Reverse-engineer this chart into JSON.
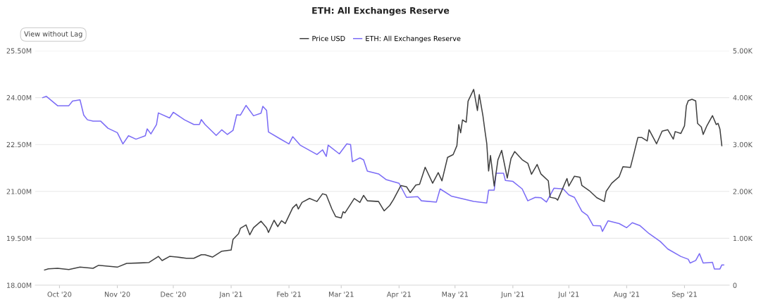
{
  "chart_data": {
    "type": "line",
    "title": "ETH: All Exchanges Reserve",
    "annotations": [
      "View without Lag"
    ],
    "legend": "top",
    "grid": "y",
    "xlim": [
      "2020-09-18",
      "2021-09-25"
    ],
    "xticks": [
      {
        "value": "2020-10-01",
        "label": "Oct '20"
      },
      {
        "value": "2020-11-01",
        "label": "Nov '20"
      },
      {
        "value": "2020-12-01",
        "label": "Dec '20"
      },
      {
        "value": "2021-01-01",
        "label": "Jan '21"
      },
      {
        "value": "2021-02-01",
        "label": "Feb '21"
      },
      {
        "value": "2021-03-01",
        "label": "Mar '21"
      },
      {
        "value": "2021-04-01",
        "label": "Apr '21"
      },
      {
        "value": "2021-05-01",
        "label": "May '21"
      },
      {
        "value": "2021-06-01",
        "label": "Jun '21"
      },
      {
        "value": "2021-07-01",
        "label": "Jul '21"
      },
      {
        "value": "2021-08-01",
        "label": "Aug '21"
      },
      {
        "value": "2021-09-01",
        "label": "Sep '21"
      }
    ],
    "ylim": [
      18,
      25.5
    ],
    "yticks": [
      {
        "value": 18,
        "label": "18.00M"
      },
      {
        "value": 19.5,
        "label": "19.50M"
      },
      {
        "value": 21,
        "label": "21.00M"
      },
      {
        "value": 22.5,
        "label": "22.50M"
      },
      {
        "value": 24,
        "label": "24.00M"
      },
      {
        "value": 25.5,
        "label": "25.50M"
      }
    ],
    "y2lim": [
      0,
      5000
    ],
    "y2ticks": [
      0,
      {
        "value": 1000,
        "label": "1.00K"
      },
      {
        "value": 2000,
        "label": "2.00K"
      },
      {
        "value": 3000,
        "label": "3.00K"
      },
      {
        "value": 4000,
        "label": "4.00K"
      },
      {
        "value": 5000,
        "label": "5.00K"
      }
    ],
    "series": [
      {
        "name": "Price USD",
        "color": "#404040",
        "axis": "y2",
        "x": [
          "2020-09-23",
          "2020-09-25",
          "2020-09-30",
          "2020-10-06",
          "2020-10-12",
          "2020-10-19",
          "2020-10-22",
          "2020-11-01",
          "2020-11-06",
          "2020-11-13",
          "2020-11-18",
          "2020-11-23",
          "2020-11-25",
          "2020-11-29",
          "2020-12-03",
          "2020-12-08",
          "2020-12-12",
          "2020-12-16",
          "2020-12-18",
          "2020-12-22",
          "2020-12-27",
          "2021-01-01",
          "2021-01-02",
          "2021-01-05",
          "2021-01-06",
          "2021-01-09",
          "2021-01-11",
          "2021-01-13",
          "2021-01-17",
          "2021-01-20",
          "2021-01-21",
          "2021-01-24",
          "2021-01-26",
          "2021-01-28",
          "2021-01-30",
          "2021-02-03",
          "2021-02-05",
          "2021-02-06",
          "2021-02-08",
          "2021-02-12",
          "2021-02-16",
          "2021-02-19",
          "2021-02-21",
          "2021-02-24",
          "2021-02-26",
          "2021-03-01",
          "2021-03-02",
          "2021-03-03",
          "2021-03-08",
          "2021-03-11",
          "2021-03-13",
          "2021-03-15",
          "2021-03-21",
          "2021-03-24",
          "2021-03-27",
          "2021-03-29",
          "2021-04-02",
          "2021-04-05",
          "2021-04-07",
          "2021-04-10",
          "2021-04-12",
          "2021-04-15",
          "2021-04-19",
          "2021-04-22",
          "2021-04-24",
          "2021-04-27",
          "2021-04-30",
          "2021-05-02",
          "2021-05-03",
          "2021-05-04",
          "2021-05-05",
          "2021-05-07",
          "2021-05-08",
          "2021-05-11",
          "2021-05-13",
          "2021-05-14",
          "2021-05-16",
          "2021-05-17",
          "2021-05-18",
          "2021-05-19",
          "2021-05-20",
          "2021-05-22",
          "2021-05-24",
          "2021-05-26",
          "2021-05-29",
          "2021-05-31",
          "2021-06-02",
          "2021-06-06",
          "2021-06-09",
          "2021-06-11",
          "2021-06-14",
          "2021-06-16",
          "2021-06-20",
          "2021-06-21",
          "2021-06-24",
          "2021-06-25",
          "2021-06-30",
          "2021-07-01",
          "2021-07-04",
          "2021-07-07",
          "2021-07-08",
          "2021-07-12",
          "2021-07-16",
          "2021-07-20",
          "2021-07-21",
          "2021-07-24",
          "2021-07-28",
          "2021-07-30",
          "2021-08-03",
          "2021-08-05",
          "2021-08-07",
          "2021-08-09",
          "2021-08-12",
          "2021-08-13",
          "2021-08-17",
          "2021-08-20",
          "2021-08-23",
          "2021-08-26",
          "2021-08-27",
          "2021-08-30",
          "2021-09-01",
          "2021-09-02",
          "2021-09-03",
          "2021-09-05",
          "2021-09-07",
          "2021-09-08",
          "2021-09-10",
          "2021-09-11",
          "2021-09-13",
          "2021-09-16",
          "2021-09-18",
          "2021-09-19",
          "2021-09-20",
          "2021-09-21"
        ],
        "values": [
          325,
          350,
          360,
          335,
          385,
          360,
          425,
          385,
          465,
          475,
          485,
          615,
          525,
          615,
          600,
          575,
          575,
          650,
          650,
          600,
          725,
          750,
          975,
          1100,
          1215,
          1285,
          1075,
          1225,
          1365,
          1225,
          1125,
          1385,
          1250,
          1375,
          1315,
          1650,
          1725,
          1625,
          1765,
          1850,
          1785,
          1950,
          1925,
          1625,
          1465,
          1435,
          1565,
          1540,
          1850,
          1765,
          1915,
          1800,
          1785,
          1585,
          1700,
          1825,
          2125,
          2100,
          1975,
          2135,
          2150,
          2515,
          2175,
          2400,
          2225,
          2725,
          2785,
          2975,
          3425,
          3250,
          3525,
          3475,
          3925,
          4175,
          3725,
          4065,
          3600,
          3300,
          3025,
          2435,
          2765,
          2115,
          2675,
          2875,
          2285,
          2700,
          2850,
          2675,
          2600,
          2365,
          2575,
          2375,
          2225,
          1875,
          1850,
          1815,
          2275,
          2115,
          2325,
          2300,
          2125,
          2015,
          1865,
          1785,
          2000,
          2175,
          2315,
          2525,
          2510,
          2825,
          3150,
          3150,
          3075,
          3315,
          3015,
          3285,
          3315,
          3115,
          3275,
          3235,
          3400,
          3825,
          3935,
          3965,
          3930,
          3450,
          3375,
          3215,
          3400,
          3615,
          3425,
          3450,
          3325,
          2975
        ]
      },
      {
        "name": "ETH: All Exchanges Reserve",
        "color": "#7b6cf6",
        "axis": "y",
        "x": [
          "2020-09-22",
          "2020-09-24",
          "2020-09-30",
          "2020-10-06",
          "2020-10-08",
          "2020-10-12",
          "2020-10-14",
          "2020-10-16",
          "2020-10-19",
          "2020-10-23",
          "2020-10-27",
          "2020-11-01",
          "2020-11-04",
          "2020-11-07",
          "2020-11-11",
          "2020-11-16",
          "2020-11-17",
          "2020-11-19",
          "2020-11-22",
          "2020-11-23",
          "2020-11-29",
          "2020-12-01",
          "2020-12-07",
          "2020-12-12",
          "2020-12-15",
          "2020-12-16",
          "2020-12-18",
          "2020-12-24",
          "2020-12-27",
          "2020-12-30",
          "2021-01-02",
          "2021-01-04",
          "2021-01-06",
          "2021-01-09",
          "2021-01-13",
          "2021-01-17",
          "2021-01-18",
          "2021-01-20",
          "2021-01-21",
          "2021-01-27",
          "2021-02-01",
          "2021-02-03",
          "2021-02-07",
          "2021-02-16",
          "2021-02-19",
          "2021-02-21",
          "2021-02-22",
          "2021-02-28",
          "2021-03-04",
          "2021-03-06",
          "2021-03-07",
          "2021-03-11",
          "2021-03-13",
          "2021-03-15",
          "2021-03-21",
          "2021-03-25",
          "2021-04-01",
          "2021-04-05",
          "2021-04-11",
          "2021-04-13",
          "2021-04-21",
          "2021-04-23",
          "2021-04-29",
          "2021-05-11",
          "2021-05-18",
          "2021-05-19",
          "2021-05-22",
          "2021-05-23",
          "2021-05-27",
          "2021-05-28",
          "2021-06-01",
          "2021-06-06",
          "2021-06-09",
          "2021-06-13",
          "2021-06-16",
          "2021-06-19",
          "2021-06-23",
          "2021-06-28",
          "2021-07-01",
          "2021-07-04",
          "2021-07-08",
          "2021-07-11",
          "2021-07-14",
          "2021-07-18",
          "2021-07-19",
          "2021-07-22",
          "2021-07-28",
          "2021-08-01",
          "2021-08-04",
          "2021-08-08",
          "2021-08-13",
          "2021-08-19",
          "2021-08-23",
          "2021-08-30",
          "2021-09-03",
          "2021-09-04",
          "2021-09-07",
          "2021-09-09",
          "2021-09-11",
          "2021-09-16",
          "2021-09-17",
          "2021-09-20",
          "2021-09-21",
          "2021-09-22"
        ],
        "values": [
          24.0,
          24.04,
          23.74,
          23.74,
          23.89,
          23.93,
          23.44,
          23.29,
          23.25,
          23.25,
          23.02,
          22.88,
          22.52,
          22.78,
          22.67,
          22.78,
          23.0,
          22.84,
          23.14,
          23.51,
          23.35,
          23.53,
          23.29,
          23.14,
          23.14,
          23.3,
          23.14,
          22.79,
          22.97,
          22.82,
          22.95,
          23.45,
          23.44,
          23.75,
          23.42,
          23.5,
          23.72,
          23.59,
          22.9,
          22.69,
          22.52,
          22.75,
          22.48,
          22.18,
          22.33,
          22.12,
          22.48,
          22.2,
          22.52,
          22.5,
          21.95,
          22.07,
          22.01,
          21.65,
          21.56,
          21.38,
          21.26,
          20.81,
          20.83,
          20.7,
          20.66,
          21.08,
          20.85,
          20.68,
          20.63,
          21.04,
          21.04,
          21.58,
          21.58,
          21.35,
          21.32,
          21.08,
          20.7,
          20.81,
          20.8,
          20.66,
          21.1,
          21.08,
          20.89,
          20.81,
          20.36,
          20.23,
          19.91,
          19.9,
          19.72,
          20.06,
          19.97,
          19.84,
          20.0,
          19.91,
          19.65,
          19.4,
          19.16,
          18.92,
          18.83,
          18.71,
          18.79,
          19.01,
          18.71,
          18.73,
          18.52,
          18.52,
          18.65,
          18.65
        ]
      }
    ]
  }
}
